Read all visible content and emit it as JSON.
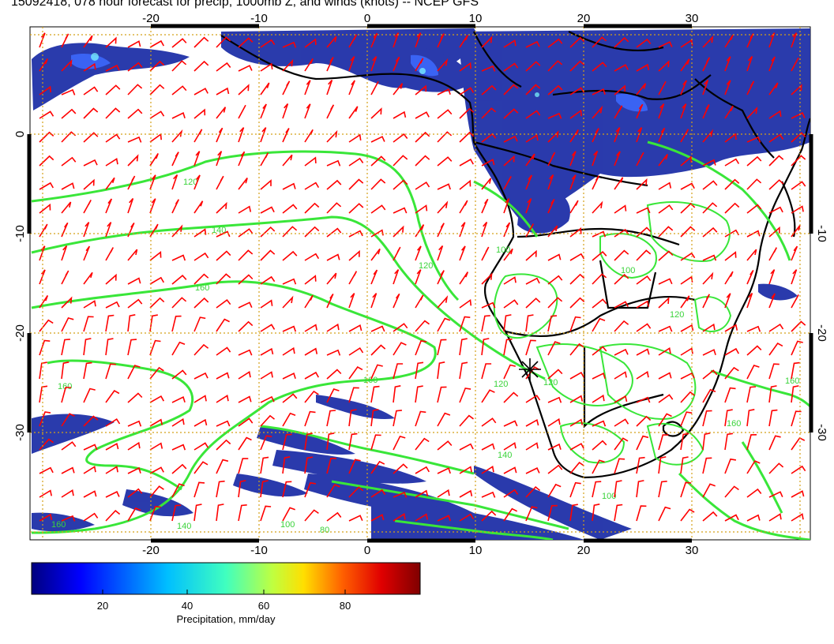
{
  "title": "15092418, 078 hour forecast for precip, 1000mb Z, and winds (knots) -- NCEP GFS",
  "map": {
    "lon_ticks": [
      "-20",
      "-10",
      "0",
      "10",
      "20",
      "30"
    ],
    "lat_ticks": [
      "0",
      "-10",
      "-20",
      "-30"
    ],
    "contour_labels": [
      "120",
      "140",
      "160",
      "160",
      "160",
      "120",
      "100",
      "120",
      "120",
      "160",
      "140",
      "100",
      "120",
      "160",
      "140",
      "160",
      "100",
      "100",
      "80"
    ],
    "colors": {
      "contours": "#39e639",
      "wind_barbs": "#ff0000",
      "coastlines": "#000000",
      "gridlines": "#d4a017",
      "precip_low": "#1a2a9a",
      "precip_mid": "#2d4fd6"
    },
    "marker_icon": "asterisk-icon"
  },
  "colorbar": {
    "ticks": [
      "20",
      "40",
      "60",
      "80"
    ],
    "label": "Precipitation, mm/day",
    "range": [
      0,
      100
    ],
    "colors": [
      "#00007f",
      "#0000ff",
      "#007fff",
      "#00ffff",
      "#7fff7f",
      "#ffff00",
      "#ff7f00",
      "#ff0000",
      "#7f0000"
    ]
  }
}
